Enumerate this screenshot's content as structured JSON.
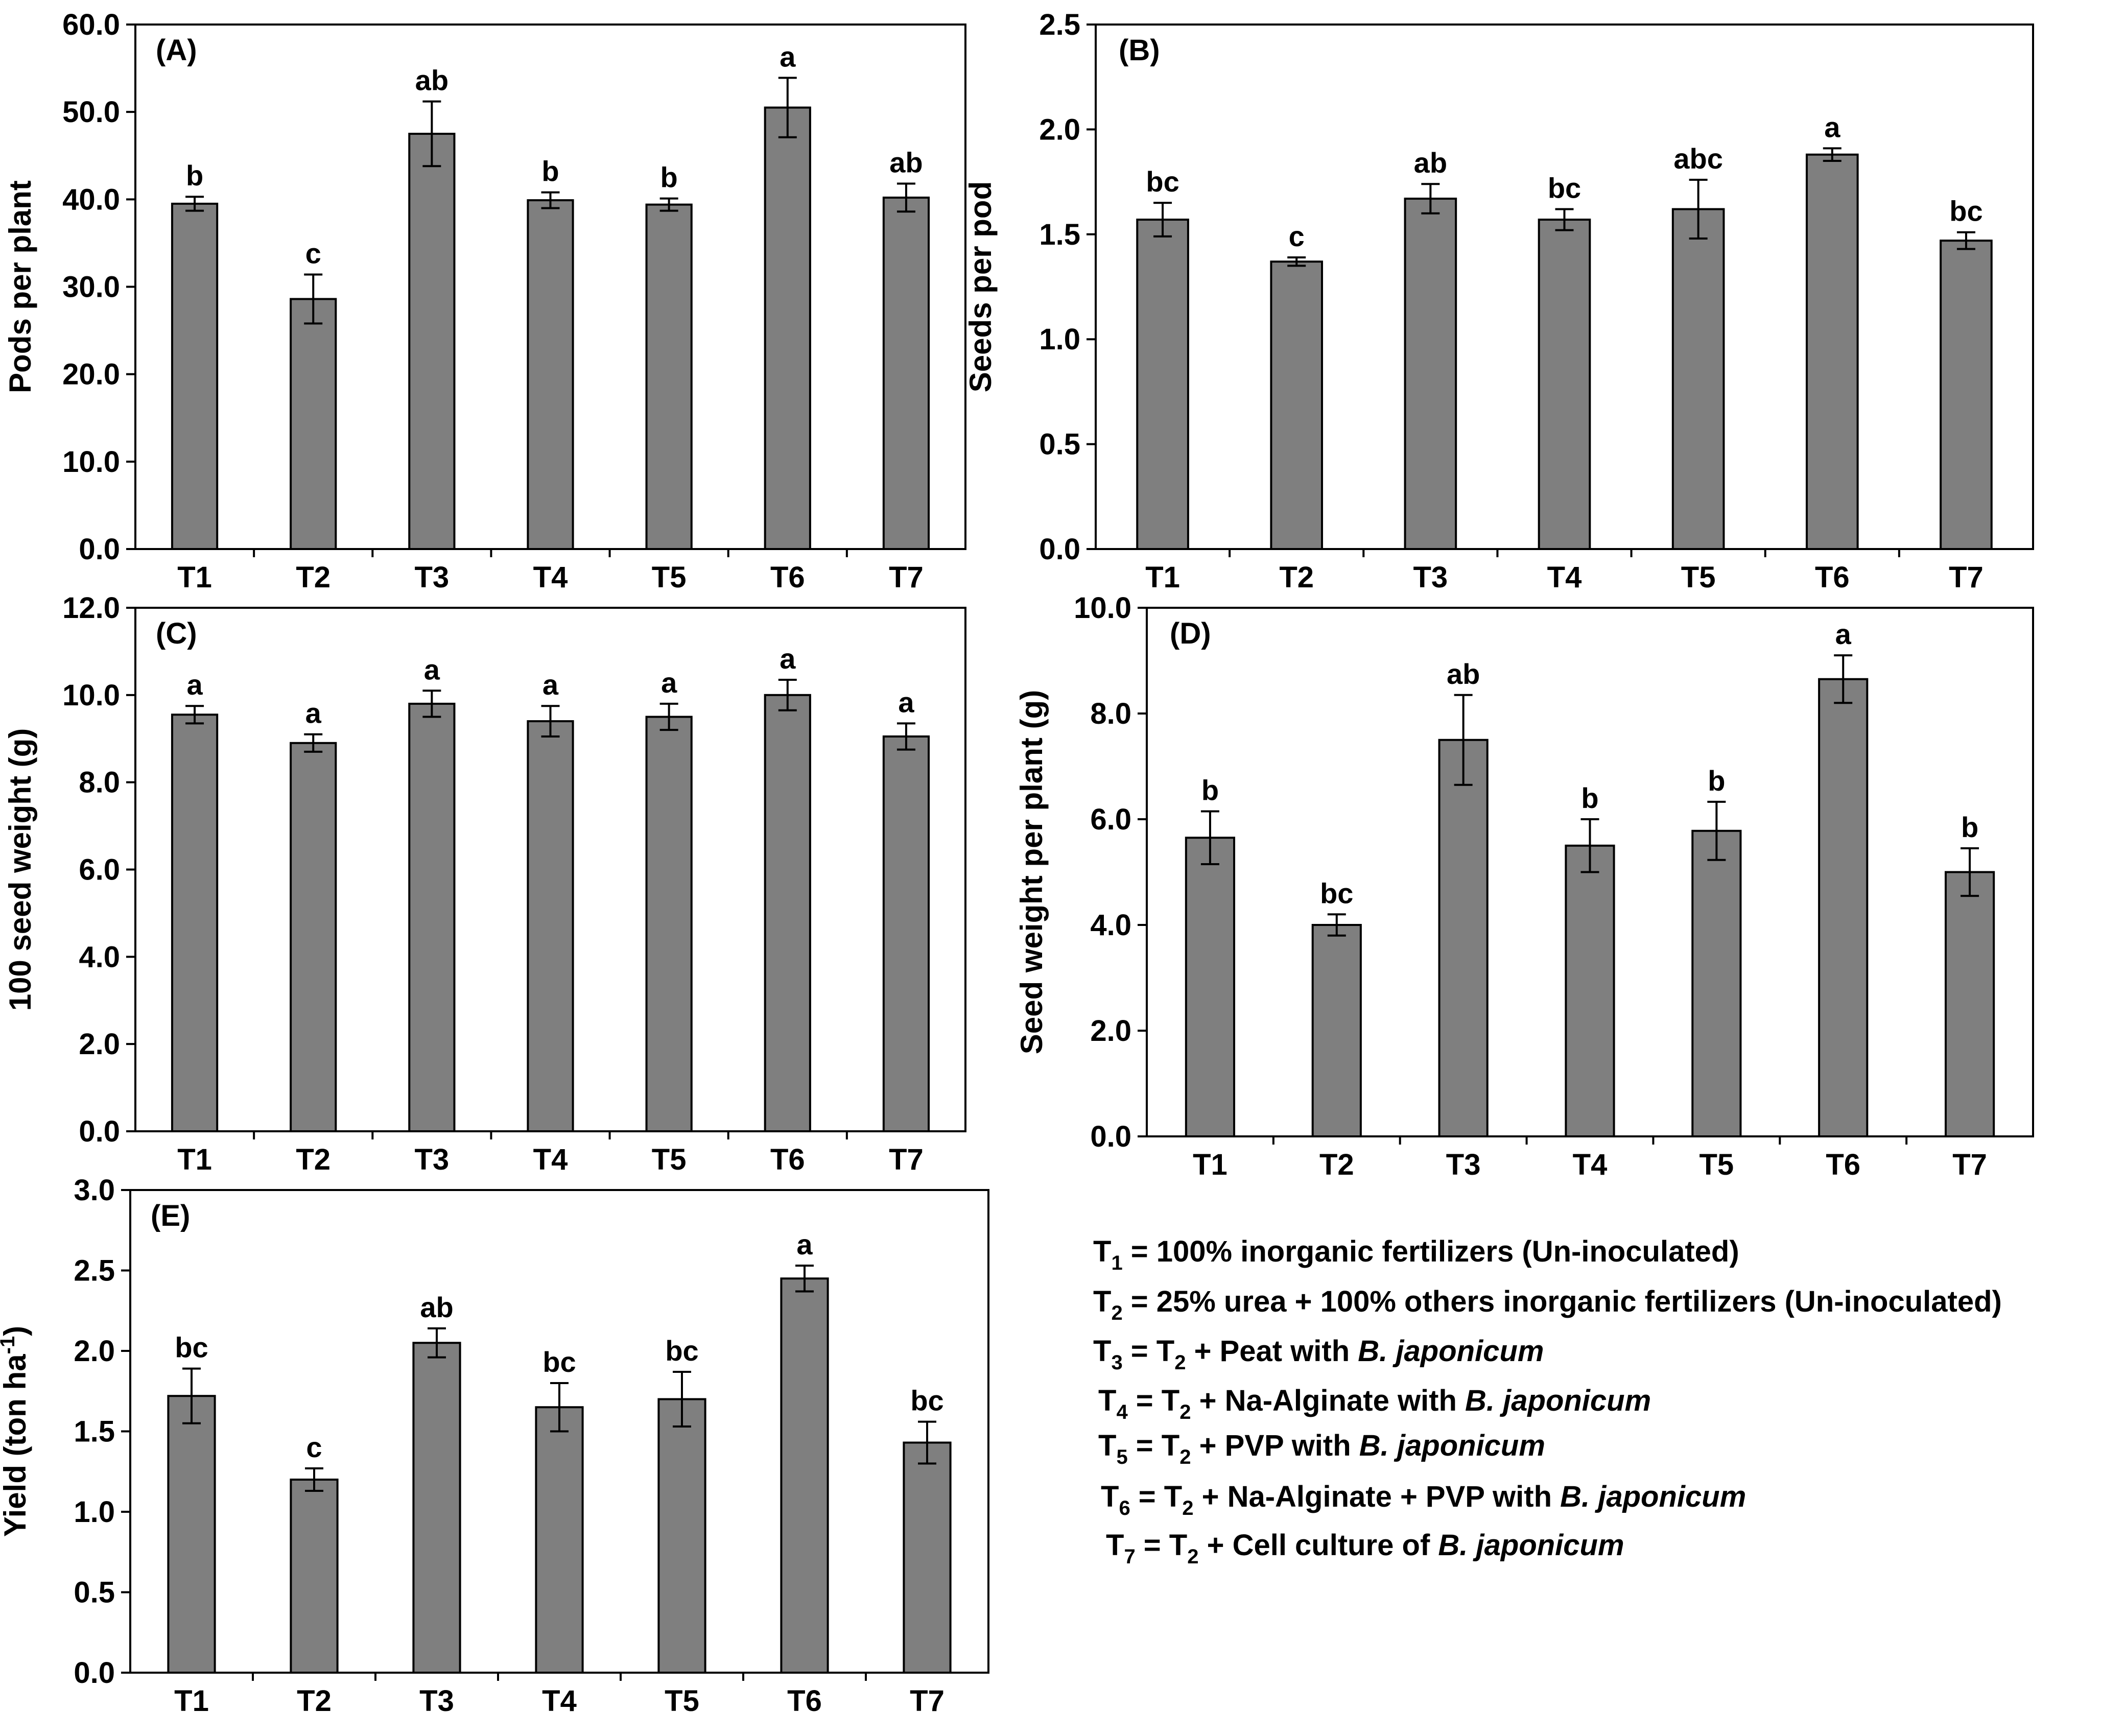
{
  "chart_data": [
    {
      "type": "bar",
      "panel": "(A)",
      "ylabel": "Pods per plant",
      "ylim": [
        0,
        60
      ],
      "yticks": [
        "0.0",
        "10.0",
        "20.0",
        "30.0",
        "40.0",
        "50.0",
        "60.0"
      ],
      "categories": [
        "T1",
        "T2",
        "T3",
        "T4",
        "T5",
        "T6",
        "T7"
      ],
      "values": [
        39.5,
        28.6,
        47.5,
        39.9,
        39.4,
        50.5,
        40.2
      ],
      "errors": [
        0.8,
        2.8,
        3.7,
        0.9,
        0.7,
        3.4,
        1.6
      ],
      "significance": [
        "b",
        "c",
        "ab",
        "b",
        "b",
        "a",
        "ab"
      ]
    },
    {
      "type": "bar",
      "panel": "(B)",
      "ylabel": "Seeds per pod",
      "ylim": [
        0,
        2.5
      ],
      "yticks": [
        "0.0",
        "0.5",
        "1.0",
        "1.5",
        "2.0",
        "2.5"
      ],
      "categories": [
        "T1",
        "T2",
        "T3",
        "T4",
        "T5",
        "T6",
        "T7"
      ],
      "values": [
        1.57,
        1.37,
        1.67,
        1.57,
        1.62,
        1.88,
        1.47
      ],
      "errors": [
        0.08,
        0.02,
        0.07,
        0.05,
        0.14,
        0.03,
        0.04
      ],
      "significance": [
        "bc",
        "c",
        "ab",
        "bc",
        "abc",
        "a",
        "bc"
      ]
    },
    {
      "type": "bar",
      "panel": "(C)",
      "ylabel": "100 seed weight (g)",
      "ylim": [
        0,
        12
      ],
      "yticks": [
        "0.0",
        "2.0",
        "4.0",
        "6.0",
        "8.0",
        "10.0",
        "12.0"
      ],
      "categories": [
        "T1",
        "T2",
        "T3",
        "T4",
        "T5",
        "T6",
        "T7"
      ],
      "values": [
        9.55,
        8.9,
        9.8,
        9.4,
        9.5,
        10.0,
        9.05
      ],
      "errors": [
        0.2,
        0.2,
        0.3,
        0.35,
        0.3,
        0.35,
        0.3
      ],
      "significance": [
        "a",
        "a",
        "a",
        "a",
        "a",
        "a",
        "a"
      ]
    },
    {
      "type": "bar",
      "panel": "(D)",
      "ylabel": "Seed weight per plant (g)",
      "ylim": [
        0,
        10
      ],
      "yticks": [
        "0.0",
        "2.0",
        "4.0",
        "6.0",
        "8.0",
        "10.0"
      ],
      "categories": [
        "T1",
        "T2",
        "T3",
        "T4",
        "T5",
        "T6",
        "T7"
      ],
      "values": [
        5.65,
        4.0,
        7.5,
        5.5,
        5.78,
        8.65,
        5.0
      ],
      "errors": [
        0.5,
        0.2,
        0.85,
        0.5,
        0.55,
        0.45,
        0.45
      ],
      "significance": [
        "b",
        "bc",
        "ab",
        "b",
        "b",
        "a",
        "b"
      ]
    },
    {
      "type": "bar",
      "panel": "(E)",
      "ylabel": "Yield (ton ha-1)",
      "ylim": [
        0,
        3
      ],
      "yticks": [
        "0.0",
        "0.5",
        "1.0",
        "1.5",
        "2.0",
        "2.5",
        "3.0"
      ],
      "categories": [
        "T1",
        "T2",
        "T3",
        "T4",
        "T5",
        "T6",
        "T7"
      ],
      "values": [
        1.72,
        1.2,
        2.05,
        1.65,
        1.7,
        2.45,
        1.43
      ],
      "errors": [
        0.17,
        0.07,
        0.09,
        0.15,
        0.17,
        0.08,
        0.13
      ],
      "significance": [
        "bc",
        "c",
        "ab",
        "bc",
        "bc",
        "a",
        "bc"
      ]
    }
  ],
  "legend": [
    {
      "sub": "1",
      "text": " = 100% inorganic fertilizers (Un-inoculated)"
    },
    {
      "sub": "2",
      "text": " = 25% urea + 100% others inorganic fertilizers (Un-inoculated)"
    },
    {
      "sub": "3",
      "text": " = T",
      "sub2": "2",
      "text2": " + Peat with ",
      "italic": "B. japonicum"
    },
    {
      "sub": "4",
      "text": " = T",
      "sub2": "2",
      "text2": " + Na-Alginate with ",
      "italic": "B. japonicum"
    },
    {
      "sub": "5",
      "text": " = T",
      "sub2": "2",
      "text2": " + PVP with ",
      "italic": "B. japonicum"
    },
    {
      "sub": "6",
      "text": " = T",
      "sub2": "2",
      "text2": " + Na-Alginate + PVP with ",
      "italic": "B. japonicum"
    },
    {
      "sub": "7",
      "text": " = T",
      "sub2": "2",
      "text2": " + Cell culture of ",
      "italic": "B. japonicum"
    }
  ],
  "colors": {
    "bar": "#7f7f7f",
    "stroke": "#000000"
  }
}
